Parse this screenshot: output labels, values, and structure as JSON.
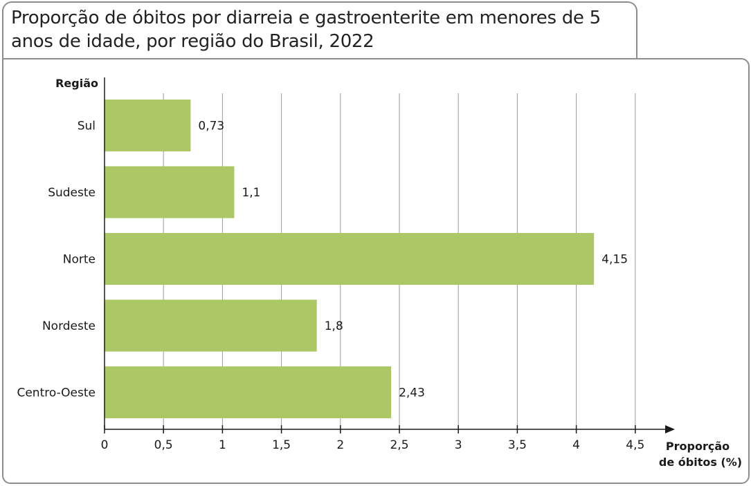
{
  "chart_data": {
    "type": "bar",
    "orientation": "horizontal",
    "title": "Proporção de óbitos por diarreia e gastroenterite em menores de 5 anos de idade, por região do Brasil, 2022",
    "ylabel": "Região",
    "xlabel_line1": "Proporção",
    "xlabel_line2": "de óbitos (%)",
    "categories": [
      "Sul",
      "Sudeste",
      "Norte",
      "Nordeste",
      "Centro-Oeste"
    ],
    "values": [
      0.73,
      1.1,
      4.15,
      1.8,
      2.43
    ],
    "value_labels": [
      "0,73",
      "1,1",
      "4,15",
      "1,8",
      "2,43"
    ],
    "xlim": [
      0,
      4.5
    ],
    "ticks": [
      0,
      0.5,
      1,
      1.5,
      2,
      2.5,
      3,
      3.5,
      4,
      4.5
    ],
    "tick_labels": [
      "0",
      "0,5",
      "1",
      "1,5",
      "2",
      "2,5",
      "3",
      "3,5",
      "4",
      "4,5"
    ],
    "grid": "vertical",
    "bar_color": "#acc866",
    "grid_color": "#9a9a9a"
  }
}
